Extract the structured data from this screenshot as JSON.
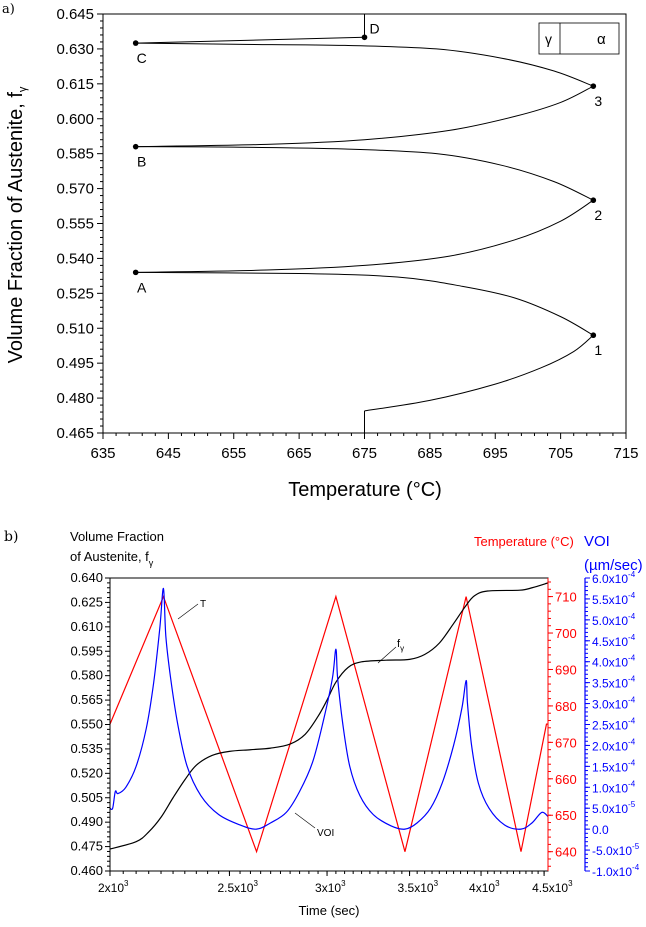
{
  "chart_data": [
    {
      "panel_label": "a)",
      "type": "line",
      "xlabel": "Temperature (°C)",
      "ylabel": "Volume Fraction of Austenite, f",
      "ylabel_sub": "γ",
      "xlim": [
        635,
        715
      ],
      "ylim": [
        0.465,
        0.645
      ],
      "xticks": [
        "635",
        "645",
        "655",
        "665",
        "675",
        "685",
        "695",
        "705",
        "715"
      ],
      "yticks": [
        "0.465",
        "0.480",
        "0.495",
        "0.510",
        "0.525",
        "0.540",
        "0.555",
        "0.570",
        "0.585",
        "0.600",
        "0.615",
        "0.630",
        "0.645"
      ],
      "legend": {
        "left": "γ",
        "right": "α",
        "placement": "top-right"
      },
      "segments": [
        [
          [
            675,
            0.465
          ],
          [
            675,
            0.4745
          ]
        ],
        [
          [
            675,
            0.4745
          ],
          [
            685,
            0.479
          ],
          [
            695,
            0.486
          ],
          [
            702,
            0.493
          ],
          [
            707,
            0.5
          ],
          [
            710,
            0.507
          ]
        ],
        [
          [
            710,
            0.507
          ],
          [
            705,
            0.515
          ],
          [
            698,
            0.523
          ],
          [
            690,
            0.528
          ],
          [
            680,
            0.532
          ],
          [
            665,
            0.5335
          ],
          [
            640,
            0.534
          ]
        ],
        [
          [
            640,
            0.534
          ],
          [
            660,
            0.535
          ],
          [
            675,
            0.537
          ],
          [
            688,
            0.541
          ],
          [
            698,
            0.548
          ],
          [
            705,
            0.556
          ],
          [
            710,
            0.565
          ]
        ],
        [
          [
            710,
            0.565
          ],
          [
            704,
            0.573
          ],
          [
            696,
            0.58
          ],
          [
            686,
            0.585
          ],
          [
            672,
            0.587
          ],
          [
            655,
            0.5878
          ],
          [
            640,
            0.588
          ]
        ],
        [
          [
            640,
            0.588
          ],
          [
            660,
            0.589
          ],
          [
            675,
            0.591
          ],
          [
            688,
            0.595
          ],
          [
            698,
            0.601
          ],
          [
            705,
            0.607
          ],
          [
            710,
            0.614
          ]
        ],
        [
          [
            710,
            0.614
          ],
          [
            704,
            0.6205
          ],
          [
            696,
            0.626
          ],
          [
            686,
            0.63
          ],
          [
            672,
            0.6315
          ],
          [
            655,
            0.632
          ],
          [
            640,
            0.6325
          ]
        ],
        [
          [
            640,
            0.6325
          ],
          [
            675,
            0.635
          ]
        ],
        [
          [
            675,
            0.635
          ],
          [
            675,
            0.645
          ]
        ]
      ],
      "points": [
        {
          "label": "1",
          "x": 710,
          "y": 0.507
        },
        {
          "label": "A",
          "x": 640,
          "y": 0.534
        },
        {
          "label": "2",
          "x": 710,
          "y": 0.565
        },
        {
          "label": "B",
          "x": 640,
          "y": 0.588
        },
        {
          "label": "3",
          "x": 710,
          "y": 0.614
        },
        {
          "label": "C",
          "x": 640,
          "y": 0.6325
        },
        {
          "label": "D",
          "x": 675,
          "y": 0.635
        }
      ]
    },
    {
      "panel_label": "b)",
      "type": "line",
      "xlabel": "Time (sec)",
      "xscale": "log",
      "xlim": [
        2000,
        4533
      ],
      "xticks": [
        {
          "value": 2000,
          "base": "2x10",
          "exp": "3"
        },
        {
          "value": 2500,
          "base": "2.5x10",
          "exp": "3"
        },
        {
          "value": 3000,
          "base": "3x10",
          "exp": "3"
        },
        {
          "value": 3500,
          "base": "3.5x10",
          "exp": "3"
        },
        {
          "value": 4000,
          "base": "4x10",
          "exp": "3"
        },
        {
          "value": 4500,
          "base": "4.5x10",
          "exp": "3"
        }
      ],
      "left_axis": {
        "title_line1": "Volume Fraction",
        "title_line2": "of Austenite, f",
        "title_sub": "γ",
        "ylim": [
          0.46,
          0.64
        ],
        "ticks": [
          "0.460",
          "0.475",
          "0.490",
          "0.505",
          "0.520",
          "0.535",
          "0.550",
          "0.565",
          "0.580",
          "0.595",
          "0.610",
          "0.625",
          "0.640"
        ]
      },
      "right_axis_temperature": {
        "title": "Temperature (°C)",
        "color": "#ff0000",
        "ylim": [
          634.7,
          715.1
        ],
        "ticks": [
          "640",
          "650",
          "660",
          "670",
          "680",
          "690",
          "700",
          "710"
        ]
      },
      "right_axis_voi": {
        "title": "VOI",
        "unit": "(µm/sec)",
        "color": "#0000ff",
        "ylim": [
          -0.0001,
          0.0006
        ],
        "ticks": [
          {
            "value": -0.0001,
            "base": "-1.0x10",
            "exp": "-4"
          },
          {
            "value": -5e-05,
            "base": "-5.0x10",
            "exp": "-5"
          },
          {
            "value": 0,
            "base": "0.0",
            "exp": ""
          },
          {
            "value": 5e-05,
            "base": "5.0x10",
            "exp": "-5"
          },
          {
            "value": 0.0001,
            "base": "1.0x10",
            "exp": "-4"
          },
          {
            "value": 0.00015,
            "base": "1.5x10",
            "exp": "-4"
          },
          {
            "value": 0.0002,
            "base": "2.0x10",
            "exp": "-4"
          },
          {
            "value": 0.00025,
            "base": "2.5x10",
            "exp": "-4"
          },
          {
            "value": 0.0003,
            "base": "3.0x10",
            "exp": "-4"
          },
          {
            "value": 0.00035,
            "base": "3.5x10",
            "exp": "-4"
          },
          {
            "value": 0.0004,
            "base": "4.0x10",
            "exp": "-4"
          },
          {
            "value": 0.00045,
            "base": "4.5x10",
            "exp": "-4"
          },
          {
            "value": 0.0005,
            "base": "5.0x10",
            "exp": "-4"
          },
          {
            "value": 0.00055,
            "base": "5.5x10",
            "exp": "-4"
          },
          {
            "value": 0.0006,
            "base": "6.0x10",
            "exp": "-4"
          }
        ]
      },
      "annotations": {
        "T": "T",
        "fgamma": "f",
        "fgamma_sub": "γ",
        "VOI": "VOI"
      },
      "series": [
        {
          "name": "T",
          "axis": "temperature",
          "color": "#ff0000",
          "points": [
            [
              2000,
              675
            ],
            [
              2210,
              710
            ],
            [
              2630,
              640
            ],
            [
              3050,
              710
            ],
            [
              3470,
              640
            ],
            [
              3890,
              710
            ],
            [
              4310,
              640
            ],
            [
              4520,
              675
            ],
            [
              4533,
              675
            ]
          ]
        },
        {
          "name": "f_gamma",
          "axis": "left",
          "color": "#000000",
          "points": [
            [
              2000,
              0.4735
            ],
            [
              2100,
              0.478
            ],
            [
              2150,
              0.484
            ],
            [
              2200,
              0.493
            ],
            [
              2250,
              0.505
            ],
            [
              2300,
              0.516
            ],
            [
              2350,
              0.525
            ],
            [
              2420,
              0.531
            ],
            [
              2500,
              0.5335
            ],
            [
              2600,
              0.5345
            ],
            [
              2700,
              0.5355
            ],
            [
              2800,
              0.538
            ],
            [
              2880,
              0.544
            ],
            [
              2950,
              0.555
            ],
            [
              3000,
              0.565
            ],
            [
              3050,
              0.576
            ],
            [
              3120,
              0.585
            ],
            [
              3200,
              0.5885
            ],
            [
              3350,
              0.5895
            ],
            [
              3500,
              0.59
            ],
            [
              3600,
              0.593
            ],
            [
              3700,
              0.6
            ],
            [
              3800,
              0.612
            ],
            [
              3880,
              0.622
            ],
            [
              3950,
              0.629
            ],
            [
              4050,
              0.632
            ],
            [
              4300,
              0.6325
            ],
            [
              4400,
              0.634
            ],
            [
              4533,
              0.637
            ]
          ]
        },
        {
          "name": "VOI",
          "axis": "voi",
          "color": "#0000ff",
          "points": [
            [
              2000,
              5e-05
            ],
            [
              2010,
              5e-05
            ],
            [
              2020,
              9e-05
            ],
            [
              2030,
              8.5e-05
            ],
            [
              2060,
              0.0001
            ],
            [
              2100,
              0.00015
            ],
            [
              2140,
              0.00024
            ],
            [
              2170,
              0.00035
            ],
            [
              2195,
              0.00048
            ],
            [
              2210,
              0.000575
            ],
            [
              2220,
              0.00046
            ],
            [
              2240,
              0.00036
            ],
            [
              2270,
              0.00025
            ],
            [
              2310,
              0.00015
            ],
            [
              2370,
              8e-05
            ],
            [
              2450,
              3.5e-05
            ],
            [
              2550,
              1e-05
            ],
            [
              2630,
              0
            ],
            [
              2700,
              1.5e-05
            ],
            [
              2780,
              4e-05
            ],
            [
              2850,
              9e-05
            ],
            [
              2920,
              0.00016
            ],
            [
              2980,
              0.00026
            ],
            [
              3030,
              0.00036
            ],
            [
              3050,
              0.00043
            ],
            [
              3060,
              0.00036
            ],
            [
              3090,
              0.00025
            ],
            [
              3130,
              0.00015
            ],
            [
              3190,
              8e-05
            ],
            [
              3270,
              3.5e-05
            ],
            [
              3380,
              8e-06
            ],
            [
              3470,
              0
            ],
            [
              3550,
              1.5e-05
            ],
            [
              3640,
              5e-05
            ],
            [
              3720,
              0.00011
            ],
            [
              3800,
              0.0002
            ],
            [
              3860,
              0.00029
            ],
            [
              3890,
              0.000355
            ],
            [
              3900,
              0.0003
            ],
            [
              3930,
              0.0002
            ],
            [
              3980,
              0.00011
            ],
            [
              4060,
              5e-05
            ],
            [
              4180,
              1e-05
            ],
            [
              4310,
              0
            ],
            [
              4400,
              1.5e-05
            ],
            [
              4480,
              4e-05
            ],
            [
              4533,
              3e-05
            ]
          ]
        }
      ]
    }
  ]
}
